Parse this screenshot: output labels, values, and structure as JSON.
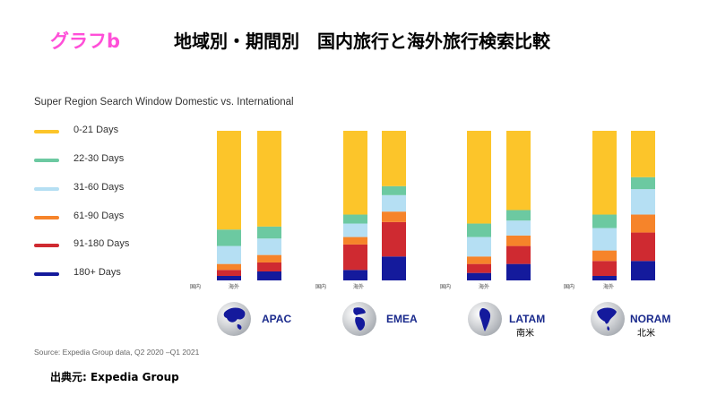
{
  "tag": "グラフb",
  "title": "地域別・期間別　国内旅行と海外旅行検索比較",
  "chart_title": "Super Region Search Window Domestic vs. International",
  "source": "Source: Expedia Group data, Q2 2020 –Q1 2021",
  "credit": "出典元: Expedia Group",
  "colors": {
    "0-21 Days": "#fcc52a",
    "22-30 Days": "#6cc9a1",
    "31-60 Days": "#b5dff3",
    "61-90 Days": "#f6842a",
    "91-180 Days": "#cf2a31",
    "180+ Days": "#141a9c"
  },
  "chart_data": {
    "type": "bar",
    "stacked": true,
    "normalized": true,
    "series_order": [
      "180+ Days",
      "91-180 Days",
      "61-90 Days",
      "31-60 Days",
      "22-30 Days",
      "0-21 Days"
    ],
    "legend": [
      "0-21 Days",
      "22-30 Days",
      "31-60 Days",
      "61-90 Days",
      "91-180 Days",
      "180+ Days"
    ],
    "bar_labels": [
      "国内",
      "海外"
    ],
    "regions": [
      {
        "name": "APAC",
        "sub": "",
        "globe_icon": "asia-globe-icon",
        "bars": [
          {
            "label": "国内",
            "values": {
              "180+ Days": 3,
              "91-180 Days": 4,
              "61-90 Days": 4,
              "31-60 Days": 12,
              "22-30 Days": 11,
              "0-21 Days": 66
            }
          },
          {
            "label": "海外",
            "values": {
              "180+ Days": 6,
              "91-180 Days": 6,
              "61-90 Days": 5,
              "31-60 Days": 11,
              "22-30 Days": 8,
              "0-21 Days": 64
            }
          }
        ]
      },
      {
        "name": "EMEA",
        "sub": "",
        "globe_icon": "europe-africa-globe-icon",
        "bars": [
          {
            "label": "国内",
            "values": {
              "180+ Days": 7,
              "91-180 Days": 17,
              "61-90 Days": 5,
              "31-60 Days": 9,
              "22-30 Days": 6,
              "0-21 Days": 56
            }
          },
          {
            "label": "海外",
            "values": {
              "180+ Days": 16,
              "91-180 Days": 23,
              "61-90 Days": 7,
              "31-60 Days": 11,
              "22-30 Days": 6,
              "0-21 Days": 37
            }
          }
        ]
      },
      {
        "name": "LATAM",
        "sub": "南米",
        "globe_icon": "south-america-globe-icon",
        "bars": [
          {
            "label": "国内",
            "values": {
              "180+ Days": 5,
              "91-180 Days": 6,
              "61-90 Days": 5,
              "31-60 Days": 13,
              "22-30 Days": 9,
              "0-21 Days": 62
            }
          },
          {
            "label": "海外",
            "values": {
              "180+ Days": 11,
              "91-180 Days": 12,
              "61-90 Days": 7,
              "31-60 Days": 10,
              "22-30 Days": 7,
              "0-21 Days": 53
            }
          }
        ]
      },
      {
        "name": "NORAM",
        "sub": "北米",
        "globe_icon": "north-america-globe-icon",
        "bars": [
          {
            "label": "国内",
            "values": {
              "180+ Days": 3,
              "91-180 Days": 10,
              "61-90 Days": 7,
              "31-60 Days": 15,
              "22-30 Days": 9,
              "0-21 Days": 56
            }
          },
          {
            "label": "海外",
            "values": {
              "180+ Days": 13,
              "91-180 Days": 19,
              "61-90 Days": 12,
              "31-60 Days": 17,
              "22-30 Days": 8,
              "0-21 Days": 31
            }
          }
        ]
      }
    ]
  }
}
